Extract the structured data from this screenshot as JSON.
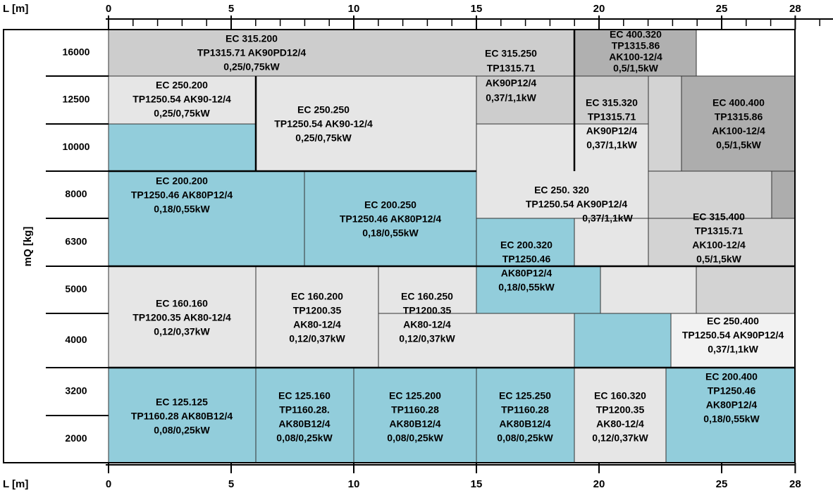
{
  "x_axis": {
    "label": "L [m]",
    "ticks": [
      0,
      5,
      10,
      15,
      20,
      25,
      28
    ]
  },
  "y_axis": {
    "label": "mQ [kg]",
    "ticks": [
      16000,
      12500,
      10000,
      8000,
      6300,
      5000,
      4000,
      3200,
      2000
    ]
  },
  "cells": [
    {
      "name": "EC 315.200",
      "lines": [
        "TP1315.71 AK90PD12/4",
        "0,25/0,75kW"
      ]
    },
    {
      "name": "EC 315.250",
      "lines": [
        "TP1315.71",
        "AK90P12/4",
        "0,37/1,1kW"
      ]
    },
    {
      "name": "EC 400.320",
      "lines": [
        "TP1315.86",
        "AK100-12/4",
        "0,5/1,5kW"
      ]
    },
    {
      "name": "EC 250.200",
      "lines": [
        "TP1250.54 AK90-12/4",
        "0,25/0,75kW"
      ]
    },
    {
      "name": "EC 250.250",
      "lines": [
        "TP1250.54 AK90-12/4",
        "0,25/0,75kW"
      ]
    },
    {
      "name": "EC 315.320",
      "lines": [
        "TP1315.71",
        "AK90P12/4",
        "0,37/1,1kW"
      ]
    },
    {
      "name": "EC 400.400",
      "lines": [
        "TP1315.86",
        "AK100-12/4",
        "0,5/1,5kW"
      ]
    },
    {
      "name": "EC 200.200",
      "lines": [
        "TP1250.46 AK80P12/4",
        "0,18/0,55kW"
      ]
    },
    {
      "name": "EC 200.250",
      "lines": [
        "TP1250.46 AK80P12/4",
        "0,18/0,55kW"
      ]
    },
    {
      "name": "EC 250. 320",
      "lines": [
        "TP1250.54 AK90P12/4",
        "0,37/1,1kW"
      ]
    },
    {
      "name": "EC 315.400",
      "lines": [
        "TP1315.71",
        "AK100-12/4",
        "0,5/1,5kW"
      ]
    },
    {
      "name": "EC 200.320",
      "lines": [
        "TP1250.46",
        "AK80P12/4",
        "0,18/0,55kW"
      ]
    },
    {
      "name": "EC 160.160",
      "lines": [
        "TP1200.35 AK80-12/4",
        "0,12/0,37kW"
      ]
    },
    {
      "name": "EC 160.200",
      "lines": [
        "TP1200.35",
        "AK80-12/4",
        "0,12/0,37kW"
      ]
    },
    {
      "name": "EC 160.250",
      "lines": [
        "TP1200.35",
        "AK80-12/4",
        "0,12/0,37kW"
      ]
    },
    {
      "name": "EC 250.400",
      "lines": [
        "TP1250.54 AK90P12/4",
        "0,37/1,1kW"
      ]
    },
    {
      "name": "EC 125.125",
      "lines": [
        "TP1160.28 AK80B12/4",
        "0,08/0,25kW"
      ]
    },
    {
      "name": "EC 125.160",
      "lines": [
        "TP1160.28.",
        "AK80B12/4",
        "0,08/0,25kW"
      ]
    },
    {
      "name": "EC 125.200",
      "lines": [
        "TP1160.28",
        "AK80B12/4",
        "0,08/0,25kW"
      ]
    },
    {
      "name": "EC 125.250",
      "lines": [
        "TP1160.28",
        "AK80B12/4",
        "0,08/0,25kW"
      ]
    },
    {
      "name": "EC 160.320",
      "lines": [
        "TP1200.35",
        "AK80-12/4",
        "0,12/0,37kW"
      ]
    },
    {
      "name": "EC 200.400",
      "lines": [
        "TP1250.46",
        "AK80P12/4",
        "0,18/0,55kW"
      ]
    }
  ]
}
